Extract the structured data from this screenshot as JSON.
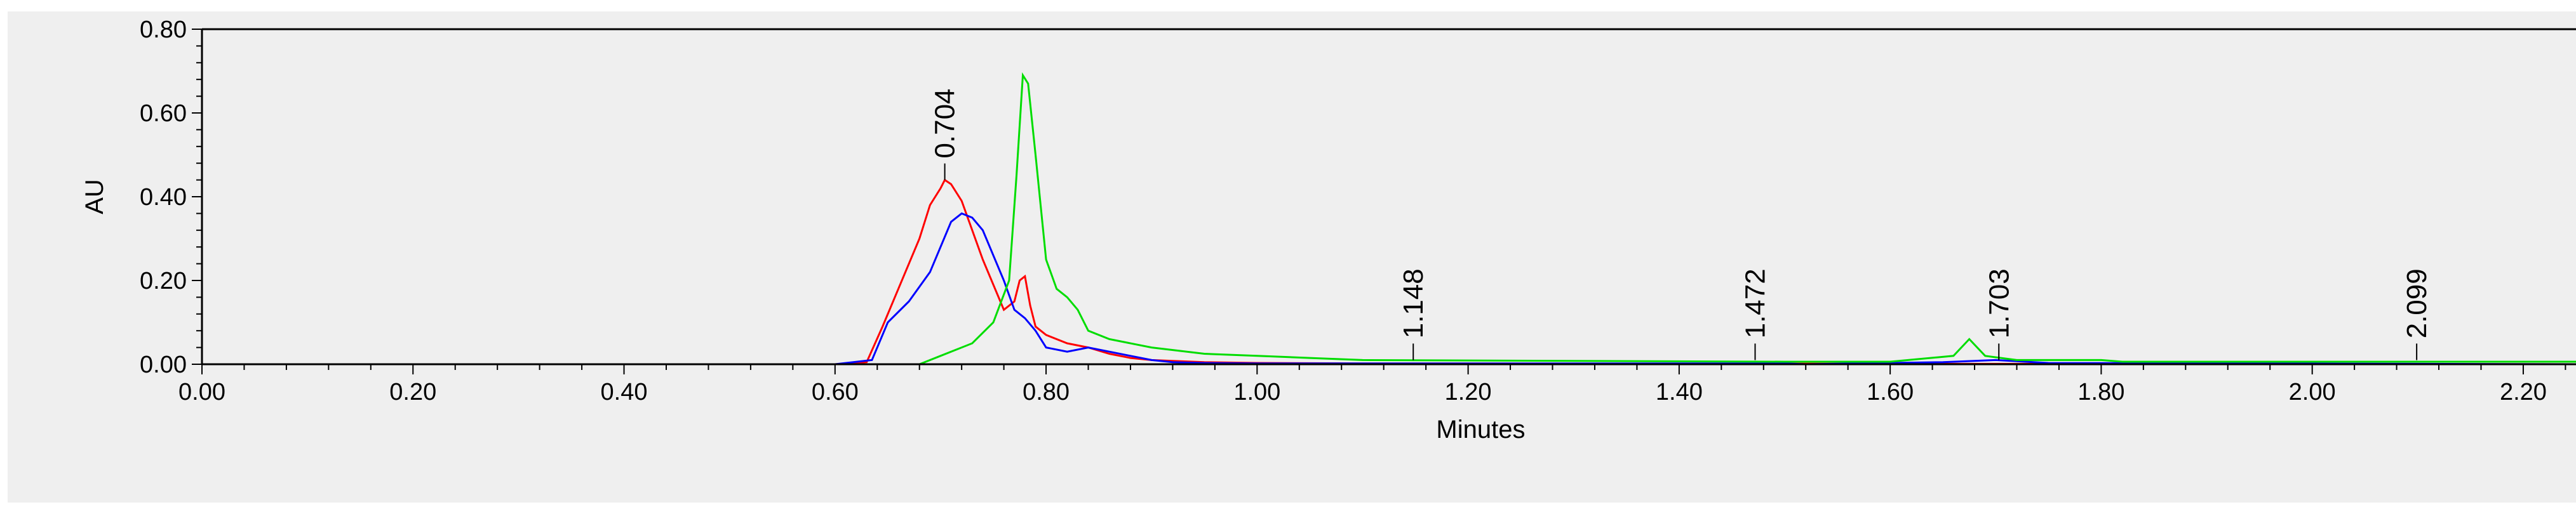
{
  "chart_data": {
    "type": "line",
    "title": "",
    "xlabel": "Minutes",
    "ylabel": "AU",
    "xlim": [
      0.0,
      2.25
    ],
    "ylim": [
      0.0,
      0.8
    ],
    "x_ticks": [
      0.0,
      0.2,
      0.4,
      0.6,
      0.8,
      1.0,
      1.2,
      1.4,
      1.6,
      1.8,
      2.0,
      2.2
    ],
    "x_tick_labels": [
      "0.00",
      "0.20",
      "0.40",
      "0.60",
      "0.80",
      "1.00",
      "1.20",
      "1.40",
      "1.60",
      "1.80",
      "2.00",
      "2.20"
    ],
    "y_ticks": [
      0.0,
      0.2,
      0.4,
      0.6,
      0.8
    ],
    "y_tick_labels": [
      "0.00",
      "0.20",
      "0.40",
      "0.60",
      "0.80"
    ],
    "grid": false,
    "legend": "none",
    "peak_labels": [
      {
        "x": 0.704,
        "y": 0.44,
        "text": "0.704"
      },
      {
        "x": 1.148,
        "y": 0.01,
        "text": "1.148"
      },
      {
        "x": 1.472,
        "y": 0.01,
        "text": "1.472"
      },
      {
        "x": 1.703,
        "y": 0.01,
        "text": "1.703"
      },
      {
        "x": 2.099,
        "y": 0.01,
        "text": "2.099"
      }
    ],
    "series": [
      {
        "color": "#ff0000",
        "x": [
          0.0,
          0.6,
          0.63,
          0.645,
          0.66,
          0.68,
          0.69,
          0.7,
          0.704,
          0.71,
          0.72,
          0.74,
          0.76,
          0.77,
          0.775,
          0.78,
          0.785,
          0.79,
          0.8,
          0.82,
          0.84,
          0.86,
          0.88,
          0.9,
          0.95,
          1.0,
          1.1,
          2.25
        ],
        "y": [
          0.0,
          0.0,
          0.005,
          0.09,
          0.18,
          0.3,
          0.38,
          0.42,
          0.44,
          0.43,
          0.39,
          0.25,
          0.13,
          0.15,
          0.2,
          0.21,
          0.14,
          0.09,
          0.07,
          0.05,
          0.04,
          0.025,
          0.015,
          0.01,
          0.005,
          0.003,
          0.002,
          0.0
        ]
      },
      {
        "color": "#0000ff",
        "x": [
          0.0,
          0.6,
          0.635,
          0.65,
          0.67,
          0.69,
          0.7,
          0.71,
          0.72,
          0.73,
          0.74,
          0.75,
          0.76,
          0.77,
          0.78,
          0.79,
          0.8,
          0.82,
          0.84,
          0.86,
          0.88,
          0.9,
          0.92,
          0.95,
          1.0,
          1.1,
          1.5,
          1.52,
          1.65,
          1.7,
          1.75,
          2.25
        ],
        "y": [
          0.0,
          0.0,
          0.01,
          0.1,
          0.15,
          0.22,
          0.28,
          0.34,
          0.36,
          0.35,
          0.32,
          0.26,
          0.2,
          0.13,
          0.11,
          0.08,
          0.04,
          0.03,
          0.04,
          0.03,
          0.02,
          0.01,
          0.005,
          0.003,
          0.002,
          0.002,
          0.002,
          0.0,
          0.005,
          0.01,
          0.003,
          0.0
        ]
      },
      {
        "color": "#00dd00",
        "x": [
          0.0,
          0.68,
          0.7,
          0.73,
          0.75,
          0.765,
          0.772,
          0.778,
          0.783,
          0.79,
          0.8,
          0.81,
          0.82,
          0.83,
          0.84,
          0.86,
          0.9,
          0.95,
          1.0,
          1.05,
          1.1,
          1.3,
          1.5,
          1.6,
          1.66,
          1.675,
          1.69,
          1.72,
          1.8,
          1.82,
          2.0,
          2.25
        ],
        "y": [
          0.0,
          0.0,
          0.02,
          0.05,
          0.1,
          0.2,
          0.45,
          0.69,
          0.67,
          0.5,
          0.25,
          0.18,
          0.16,
          0.13,
          0.08,
          0.06,
          0.04,
          0.025,
          0.02,
          0.015,
          0.01,
          0.008,
          0.006,
          0.006,
          0.02,
          0.06,
          0.02,
          0.01,
          0.01,
          0.006,
          0.006,
          0.006
        ]
      },
      {
        "color": "#000000",
        "x": [
          0.0,
          1.08,
          1.52,
          1.55,
          2.25
        ],
        "y": [
          0.0,
          0.0,
          0.0,
          0.0,
          0.0
        ]
      }
    ]
  }
}
